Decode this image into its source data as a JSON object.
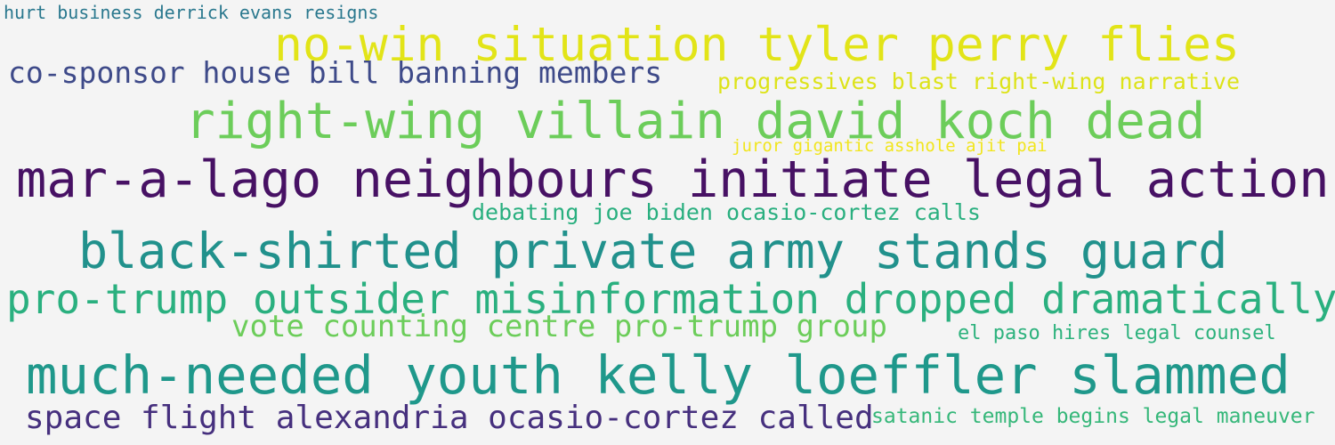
{
  "word_cloud": {
    "phrases": [
      {
        "text": "hurt business derrick evans resigns",
        "color": "#2a788e"
      },
      {
        "text": "no-win situation tyler perry flies",
        "color": "#e2e418"
      },
      {
        "text": "co-sponsor house bill banning members",
        "color": "#3e4a89"
      },
      {
        "text": "progressives blast right-wing narrative",
        "color": "#dde318"
      },
      {
        "text": "right-wing villain david koch dead",
        "color": "#6ccd5a"
      },
      {
        "text": "juror gigantic asshole ajit pai",
        "color": "#f1e51d"
      },
      {
        "text": "mar-a-lago neighbours initiate legal action",
        "color": "#471164"
      },
      {
        "text": "debating joe biden ocasio-cortez calls",
        "color": "#29af7f"
      },
      {
        "text": "black-shirted private army stands guard",
        "color": "#21918c"
      },
      {
        "text": "pro-trump outsider misinformation dropped dramatically",
        "color": "#2ab07f"
      },
      {
        "text": "vote counting centre pro-trump group",
        "color": "#6ccd5a"
      },
      {
        "text": "el paso hires legal counsel",
        "color": "#2db27d"
      },
      {
        "text": "much-needed youth kelly loeffler slammed",
        "color": "#1f988b"
      },
      {
        "text": "space flight alexandria ocasio-cortez called",
        "color": "#46307e"
      },
      {
        "text": "satanic temple begins legal maneuver",
        "color": "#35b779"
      }
    ]
  }
}
